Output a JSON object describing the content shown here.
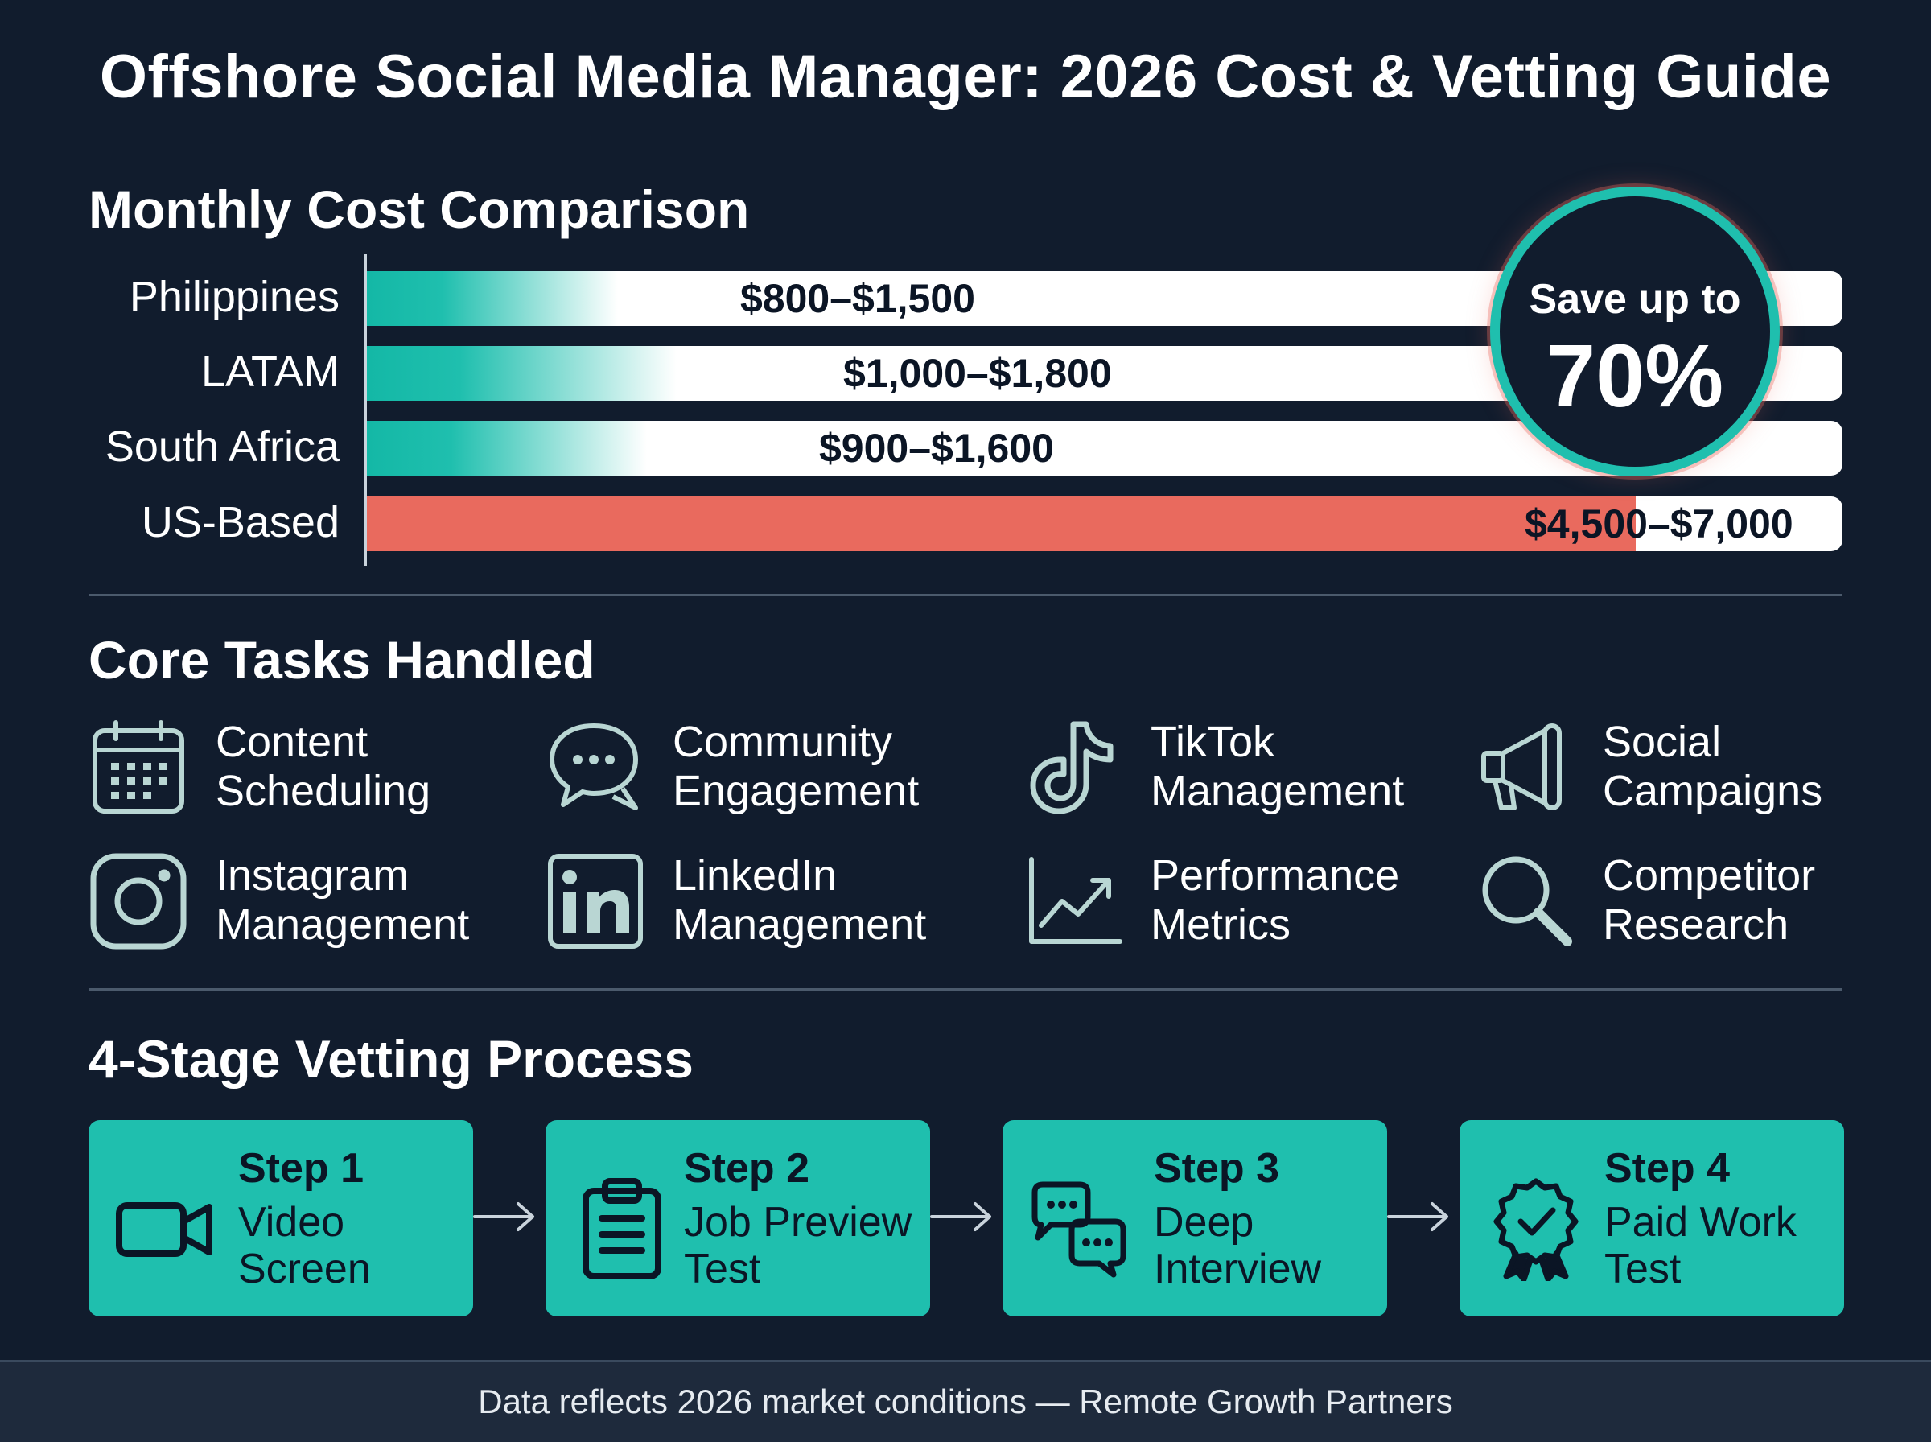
{
  "title": "Offshore Social Media Manager: 2026 Cost & Vetting Guide",
  "cost_section": {
    "heading": "Monthly Cost Comparison",
    "rows": [
      {
        "label": "Philippines",
        "value": "$800–$1,500",
        "fill": 0.17
      },
      {
        "label": "LATAM",
        "value": "$1,000–$1,800",
        "fill": 0.21
      },
      {
        "label": "South Africa",
        "value": "$900–$1,600",
        "fill": 0.19
      },
      {
        "label": "US-Based",
        "value": "$4,500–$7,000",
        "fill": 0.86
      }
    ],
    "badge": {
      "top": "Save up to",
      "big": "70%"
    },
    "colors": {
      "teal": "#1fbfae",
      "red": "#e96a5e",
      "track": "#ffffff",
      "background": "#111c2d"
    }
  },
  "chart_data": {
    "type": "bar",
    "categories": [
      "Philippines",
      "LATAM",
      "South Africa",
      "US-Based"
    ],
    "series": [
      {
        "values_low": [
          800,
          1000,
          900,
          4500
        ],
        "values_high": [
          1500,
          1800,
          1600,
          7000
        ]
      }
    ],
    "title": "Monthly Cost Comparison",
    "annotation": "Save up to 70%"
  },
  "tasks_section": {
    "heading": "Core Tasks Handled",
    "items": [
      {
        "icon": "calendar-icon",
        "line1": "Content",
        "line2": "Scheduling"
      },
      {
        "icon": "chat-bubbles-icon",
        "line1": "Community",
        "line2": "Engagement"
      },
      {
        "icon": "tiktok-icon",
        "line1": "TikTok",
        "line2": "Management"
      },
      {
        "icon": "megaphone-icon",
        "line1": "Social",
        "line2": "Campaigns"
      },
      {
        "icon": "instagram-icon",
        "line1": "Instagram",
        "line2": "Management"
      },
      {
        "icon": "linkedin-icon",
        "line1": "LinkedIn",
        "line2": "Management"
      },
      {
        "icon": "line-chart-icon",
        "line1": "Performance",
        "line2": "Metrics"
      },
      {
        "icon": "magnifier-icon",
        "line1": "Competitor",
        "line2": "Research"
      }
    ]
  },
  "vetting_section": {
    "heading": "4-Stage Vetting Process",
    "steps": [
      {
        "icon": "video-camera-icon",
        "num": "Step 1",
        "line1": "Video",
        "line2": "Screen"
      },
      {
        "icon": "clipboard-icon",
        "num": "Step 2",
        "line1": "Job Preview",
        "line2": "Test"
      },
      {
        "icon": "interview-chat-icon",
        "num": "Step 3",
        "line1": "Deep",
        "line2": "Interview"
      },
      {
        "icon": "award-badge-icon",
        "num": "Step 4",
        "line1": "Paid Work",
        "line2": "Test"
      }
    ]
  },
  "footer": "Data reflects 2026 market conditions — Remote Growth Partners"
}
